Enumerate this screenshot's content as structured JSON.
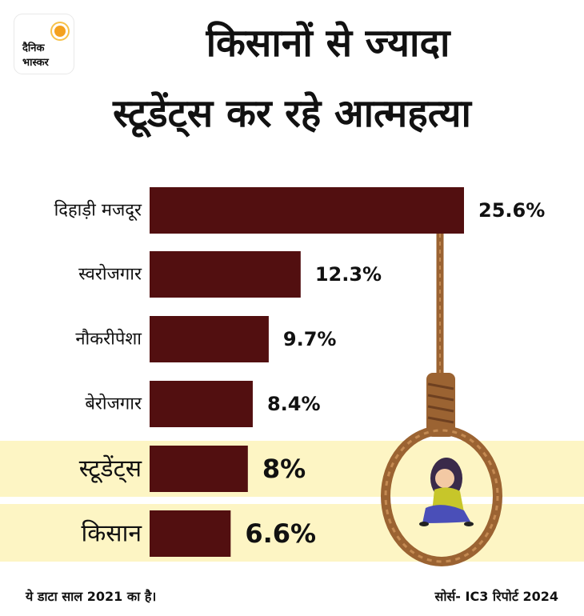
{
  "brand": {
    "line1": "दैनिक",
    "line2": "भास्कर",
    "accent": "#f4a11f"
  },
  "headline": {
    "line1": "किसानों से ज्यादा",
    "line2": "स्टूडेंट्स कर रहे आत्महत्या"
  },
  "colors": {
    "bar": "#520f10",
    "highlight": "#fdf5c4",
    "rope": "#9b6332"
  },
  "chart_data": {
    "type": "bar",
    "orientation": "horizontal",
    "categories": [
      "दिहाड़ी मजदूर",
      "स्वरोजगार",
      "नौकरीपेशा",
      "बेरोजगार",
      "स्टूडेंट्स",
      "किसान"
    ],
    "values": [
      25.6,
      12.3,
      9.7,
      8.4,
      8,
      6.6
    ],
    "value_labels": [
      "25.6%",
      "12.3%",
      "9.7%",
      "8.4%",
      "8%",
      "6.6%"
    ],
    "highlighted": [
      "स्टूडेंट्स",
      "किसान"
    ],
    "unit": "%",
    "xlim": [
      0,
      25.6
    ],
    "grid": false,
    "legend": "none"
  },
  "footer": {
    "note": "ये डाटा साल 2021 का है।",
    "source": "सोर्स- IC3 रिपोर्ट 2024"
  },
  "illustration": {
    "icon": "noose-with-sad-girl-icon"
  }
}
